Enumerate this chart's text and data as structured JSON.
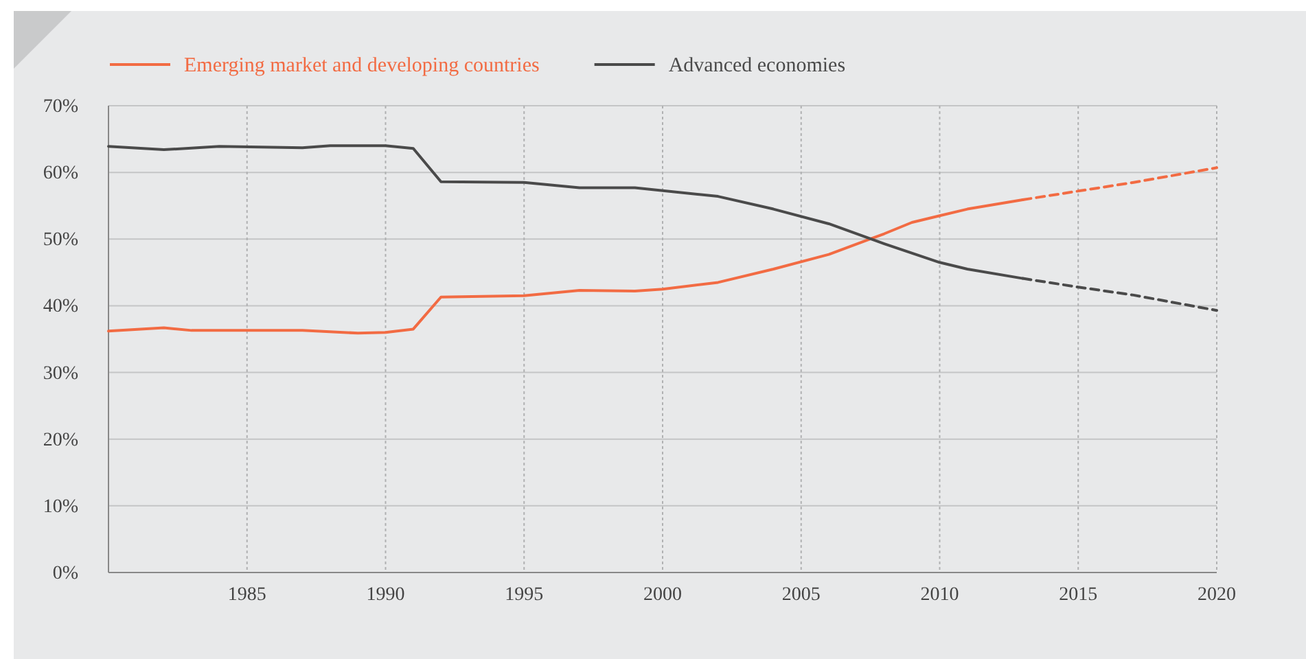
{
  "chart_data": {
    "type": "line",
    "xlim": [
      1980,
      2020
    ],
    "ylim": [
      0,
      70
    ],
    "xticks": [
      1985,
      1990,
      1995,
      2000,
      2005,
      2010,
      2015,
      2020
    ],
    "yticks": [
      {
        "value": 0,
        "label": "0%"
      },
      {
        "value": 10,
        "label": "10%"
      },
      {
        "value": 20,
        "label": "20%"
      },
      {
        "value": 30,
        "label": "30%"
      },
      {
        "value": 40,
        "label": "40%"
      },
      {
        "value": 50,
        "label": "50%"
      },
      {
        "value": 60,
        "label": "60%"
      },
      {
        "value": 70,
        "label": "70%"
      }
    ],
    "grid": true,
    "legend": "top left",
    "marker": "none",
    "series": [
      {
        "name": "Emerging market and developing countries",
        "color": "#f26b43",
        "line_style": "solid",
        "x": [
          1980,
          1982,
          1983,
          1987,
          1989,
          1990,
          1991,
          1992,
          1995,
          1997,
          1999,
          2000,
          2002,
          2004,
          2006,
          2008,
          2009,
          2010,
          2011,
          2013
        ],
        "values": [
          36.2,
          36.7,
          36.3,
          36.3,
          35.9,
          36.0,
          36.5,
          41.3,
          41.5,
          42.3,
          42.2,
          42.5,
          43.5,
          45.5,
          47.7,
          50.8,
          52.5,
          53.5,
          54.5,
          55.9
        ]
      },
      {
        "name": "Advanced economies",
        "color": "#4a4a4a",
        "line_style": "solid",
        "x": [
          1980,
          1982,
          1984,
          1987,
          1988,
          1990,
          1991,
          1992,
          1995,
          1997,
          1999,
          2002,
          2004,
          2006,
          2008,
          2010,
          2011,
          2013
        ],
        "values": [
          63.9,
          63.4,
          63.9,
          63.7,
          64.0,
          64.0,
          63.6,
          58.6,
          58.5,
          57.7,
          57.7,
          56.4,
          54.5,
          52.3,
          49.3,
          46.5,
          45.5,
          44.1
        ]
      },
      {
        "color": "#f26b43",
        "line_style": "dashed",
        "x": [
          2013,
          2015,
          2017,
          2020
        ],
        "values": [
          55.9,
          57.2,
          58.5,
          60.7
        ]
      },
      {
        "color": "#4a4a4a",
        "line_style": "dashed",
        "x": [
          2013,
          2015,
          2017,
          2020
        ],
        "values": [
          44.1,
          42.8,
          41.6,
          39.3
        ]
      }
    ]
  }
}
